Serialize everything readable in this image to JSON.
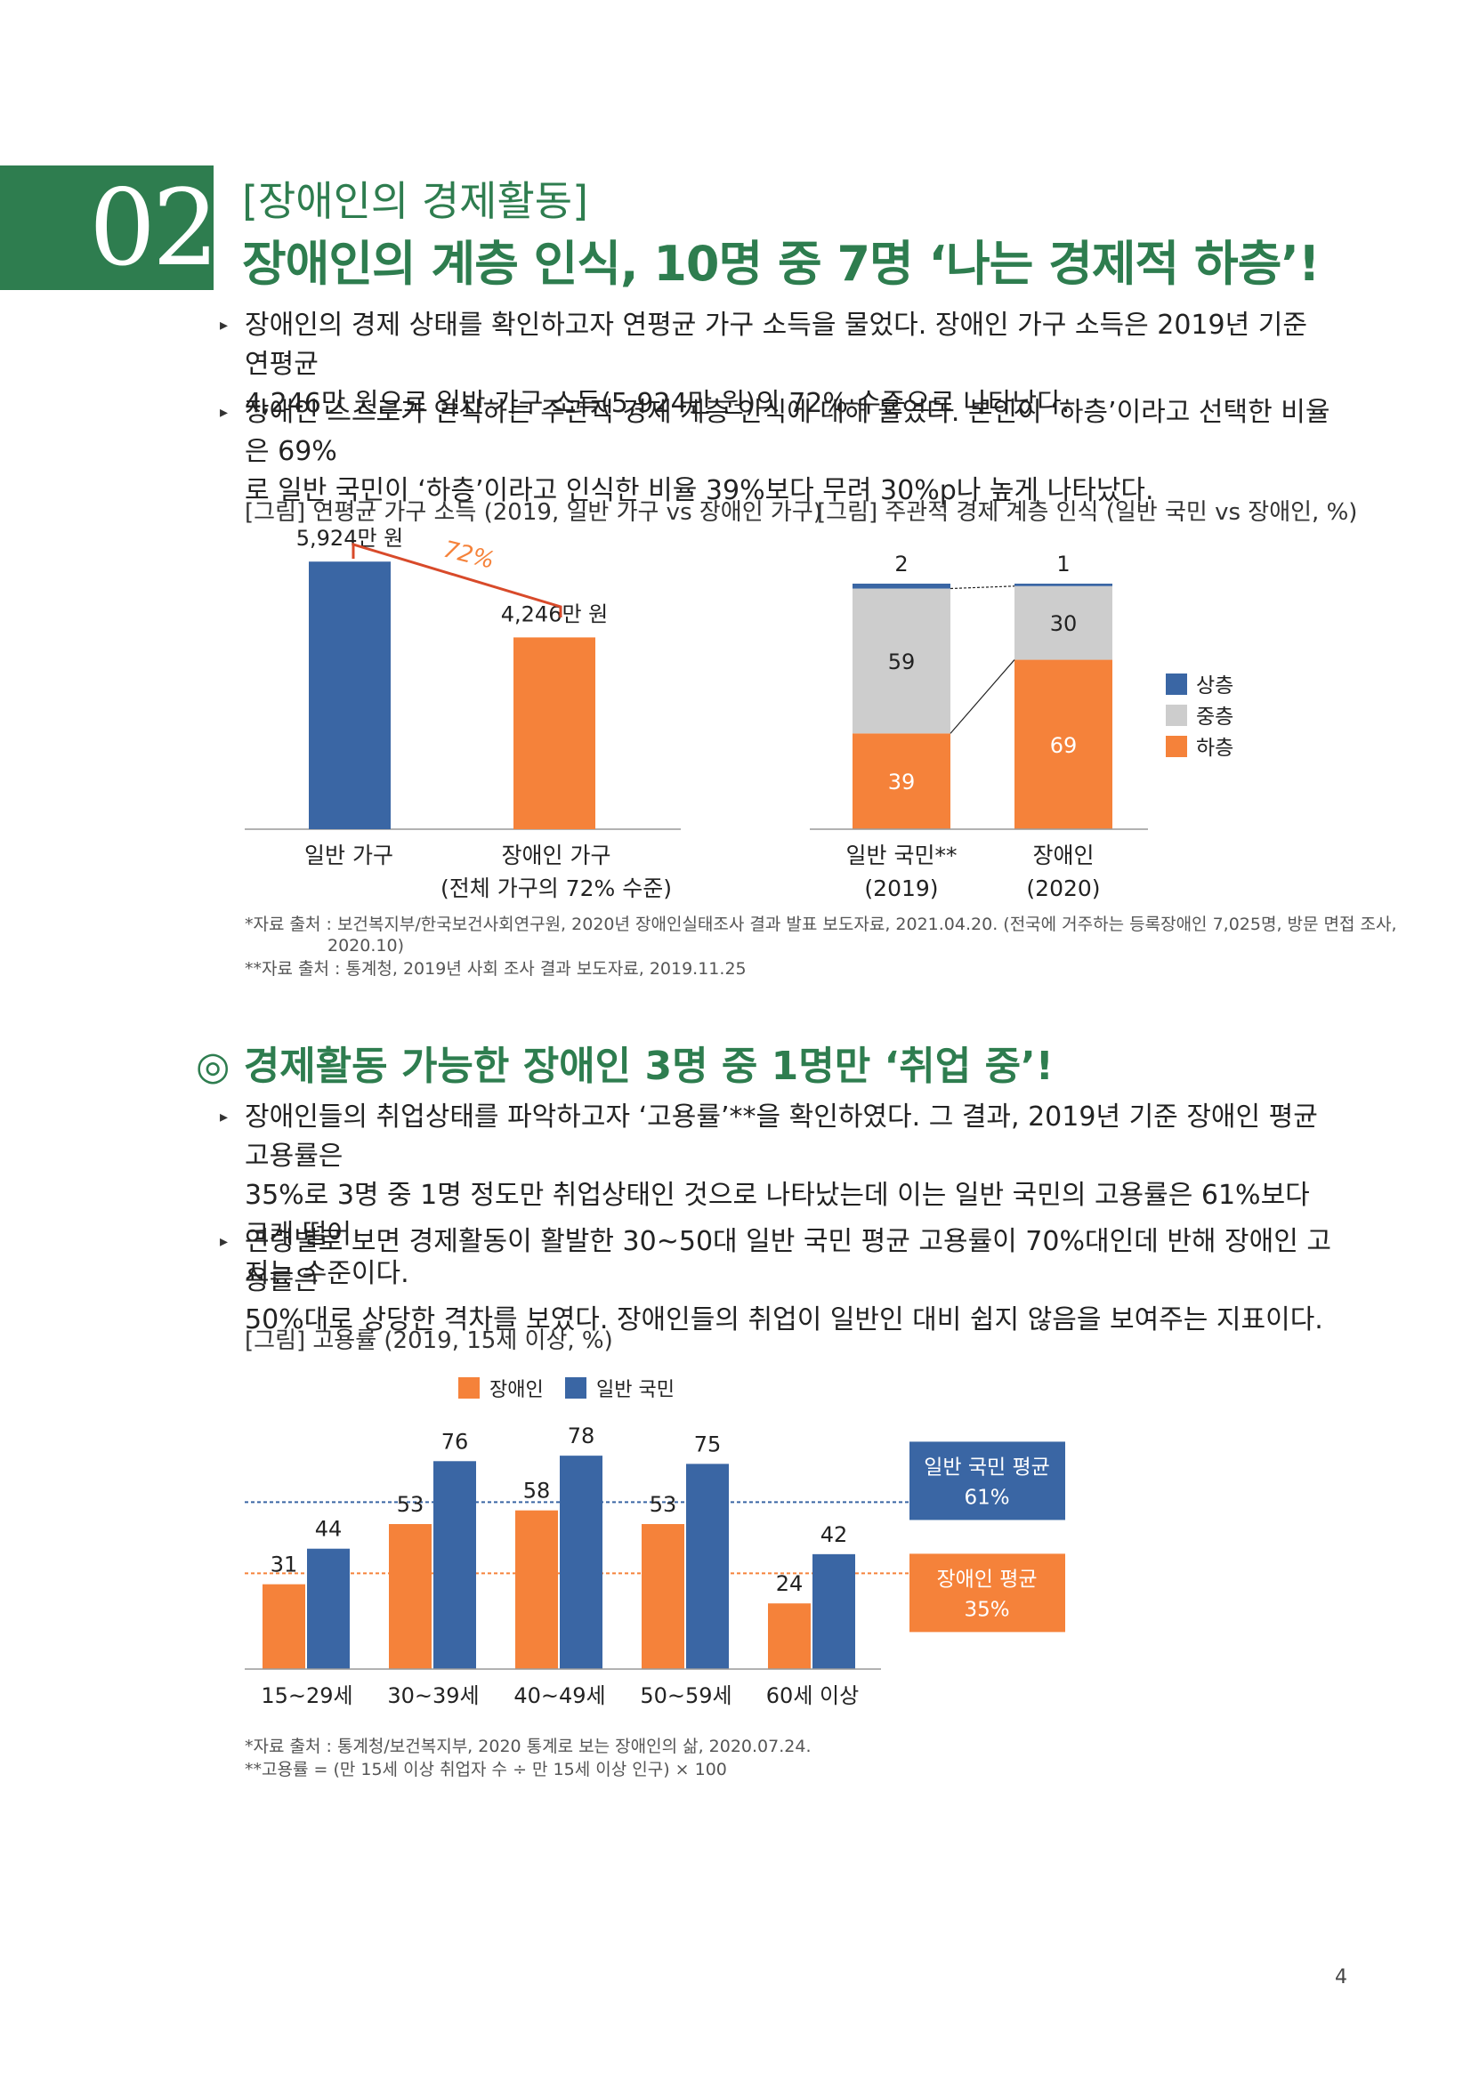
{
  "section_number": "02",
  "subtitle": "[장애인의 경제활동]",
  "title": "장애인의 계층 인식, 10명 중 7명 ‘나는 경제적 하층’!",
  "para1_line1": "장애인의 경제 상태를 확인하고자 연평균 가구 소득을 물었다. 장애인 가구 소득은 2019년 기준 연평균",
  "para1_line2": "4,246만 원으로 일반 가구 소득(5,924만 원)의 72% 수준으로 나타났다.",
  "para2_line1": "장애인 스스로가 인식하는 주관적 경제 계층 인식에 대해 물었다. 본인이 ‘하층’이라고 선택한 비율은 69%",
  "para2_line2": "로 일반 국민이 ‘하층’이라고 인식한 비율 39%보다 무려 30%p나 높게 나타났다.",
  "fig1_caption": "[그림] 연평균 가구 소득 (2019, 일반 가구 vs 장애인 가구)",
  "fig2_caption": "[그림] 주관적 경제 계층 인식 (일반 국민 vs 장애인, %)",
  "source1_line1": "*자료 출처 : 보건복지부/한국보건사회연구원, 2020년 장애인실태조사 결과 발표 보도자료, 2021.04.20. (전국에 거주하는 등록장애인 7,025명, 방문 면접 조사,",
  "source1_line2": "2020.10)",
  "source1_line3": "**자료 출처 : 통계청, 2019년 사회 조사 결과 보도자료, 2019.11.25",
  "section2_title": "◎ 경제활동 가능한 장애인 3명 중 1명만 ‘취업 중’!",
  "para3_line1": "장애인들의 취업상태를 파악하고자 ‘고용률’**을 확인하였다. 그 결과, 2019년 기준 장애인 평균 고용률은",
  "para3_line2": "35%로 3명 중 1명 정도만 취업상태인 것으로 나타났는데 이는 일반 국민의 고용률은 61%보다 크게 떨어",
  "para3_line3": "지는 수준이다.",
  "para4_line1": "연령별로 보면 경제활동이 활발한 30~50대 일반 국민 평균 고용률이 70%대인데 반해 장애인 고용률은",
  "para4_line2": "50%대로 상당한 격차를 보였다. 장애인들의 취업이 일반인 대비 쉽지 않음을 보여주는 지표이다.",
  "fig3_caption": "[그림] 고용률 (2019, 15세 이상, %)",
  "source2_line1": "*자료 출처 : 통계청/보건복지부, 2020 통계로 보는 장애인의 삶, 2020.07.24.",
  "source2_line2": "**고용률 = (만 15세 이상 취업자 수 ÷ 만 15세 이상 인구) × 100",
  "page_number": "4",
  "colors": {
    "green": "#2e7d4f",
    "blue": "#3a66a4",
    "orange": "#f5823a",
    "gray": "#cdcdcd"
  },
  "chart_data": [
    {
      "type": "bar",
      "categories": [
        "일반 가구",
        "장애인 가구"
      ],
      "category_sublabels": [
        "",
        "(전체 가구의 72% 수준)"
      ],
      "values": [
        5924,
        4246
      ],
      "data_labels": [
        "5,924만 원",
        "4,246만 원"
      ],
      "ratio_label": "72%",
      "ylim": [
        0,
        6500
      ],
      "bar_colors": [
        "#3a66a4",
        "#f5823a"
      ]
    },
    {
      "type": "bar",
      "stacked": true,
      "categories": [
        "일반 국민**",
        "장애인"
      ],
      "category_sublabels": [
        "(2019)",
        "(2020)"
      ],
      "series": [
        {
          "name": "하층",
          "values": [
            39,
            69
          ],
          "color": "#f5823a"
        },
        {
          "name": "중층",
          "values": [
            59,
            30
          ],
          "color": "#cdcdcd"
        },
        {
          "name": "상층",
          "values": [
            2,
            1
          ],
          "color": "#3a66a4"
        }
      ],
      "legend_order": [
        "상층",
        "중층",
        "하층"
      ],
      "ylim": [
        0,
        100
      ],
      "legend": "right"
    },
    {
      "type": "bar",
      "categories": [
        "15~29세",
        "30~39세",
        "40~49세",
        "50~59세",
        "60세 이상"
      ],
      "series": [
        {
          "name": "장애인",
          "values": [
            31,
            53,
            58,
            53,
            24
          ],
          "color": "#f5823a"
        },
        {
          "name": "일반 국민",
          "values": [
            44,
            76,
            78,
            75,
            42
          ],
          "color": "#3a66a4"
        }
      ],
      "reference_lines": [
        {
          "label_line1": "일반 국민 평균",
          "label_line2": "61%",
          "value": 61,
          "color": "#3a66a4"
        },
        {
          "label_line1": "장애인 평균",
          "label_line2": "35%",
          "value": 35,
          "color": "#f5823a"
        }
      ],
      "ylim": [
        0,
        80
      ],
      "legend": "top"
    }
  ]
}
